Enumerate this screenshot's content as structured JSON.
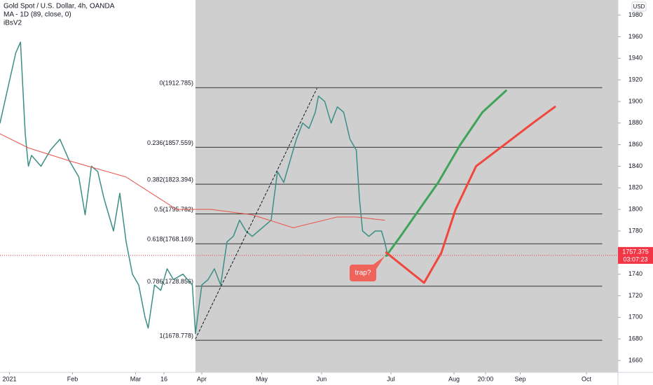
{
  "chart_data": {
    "type": "line",
    "title": "Gold Spot / U.S. Dollar, 4h, OANDA",
    "annotations": [
      "iBsV2",
      "trap?"
    ],
    "currency": "USD",
    "last_price": 1757.375,
    "countdown": "03:07:23",
    "xlim": [
      0,
      196
    ],
    "ylim": [
      1649,
      1994
    ],
    "yticks": [
      1660,
      1680,
      1700,
      1720,
      1740,
      1760,
      1780,
      1800,
      1820,
      1840,
      1860,
      1880,
      1900,
      1920,
      1940,
      1960,
      1980
    ],
    "xticks": [
      {
        "value": 3,
        "label": "2021"
      },
      {
        "value": 23,
        "label": "Feb"
      },
      {
        "value": 43,
        "label": "Mar"
      },
      {
        "value": 52,
        "label": "16"
      },
      {
        "value": 64,
        "label": "Apr"
      },
      {
        "value": 83,
        "label": "May"
      },
      {
        "value": 102,
        "label": "Jun"
      },
      {
        "value": 124,
        "label": "Jul"
      },
      {
        "value": 144,
        "label": "Aug"
      },
      {
        "value": 154,
        "label": "20:00"
      },
      {
        "value": 165,
        "label": "Sep"
      },
      {
        "value": 186,
        "label": "Oct"
      }
    ],
    "fib_range": [
      62,
      191
    ],
    "fib_levels": [
      {
        "value": 1912.785,
        "label": "0(1912.785)"
      },
      {
        "value": 1857.559,
        "label": "0.236(1857.559)"
      },
      {
        "value": 1823.394,
        "label": "0.382(1823.394)"
      },
      {
        "value": 1795.782,
        "label": "0.5(1795.782)"
      },
      {
        "value": 1768.169,
        "label": "0.618(1768.169)"
      },
      {
        "value": 1728.856,
        "label": "0.786(1728.856)"
      },
      {
        "value": 1678.778,
        "label": "1(1678.778)"
      }
    ],
    "series": [
      {
        "color": "#3b8f86",
        "x": [
          0,
          5,
          6.5,
          8,
          9,
          10,
          13,
          16,
          19,
          22,
          25,
          27,
          29,
          31,
          33,
          36,
          38,
          40,
          42,
          44,
          46,
          47,
          49,
          51,
          53,
          55,
          58,
          61,
          62,
          64,
          66,
          68,
          70,
          72,
          74,
          76,
          78,
          80,
          82,
          84,
          86,
          88,
          90,
          92,
          94,
          96,
          98,
          100,
          101,
          103,
          105,
          107,
          109,
          111,
          112,
          113,
          114,
          115,
          117,
          119,
          121,
          122,
          123
        ],
        "values": [
          1880,
          1945,
          1955,
          1870,
          1840,
          1850,
          1840,
          1855,
          1865,
          1845,
          1830,
          1795,
          1840,
          1835,
          1810,
          1780,
          1815,
          1770,
          1740,
          1730,
          1700,
          1690,
          1730,
          1725,
          1745,
          1735,
          1740,
          1730,
          1685,
          1730,
          1735,
          1745,
          1730,
          1770,
          1775,
          1790,
          1780,
          1775,
          1780,
          1785,
          1790,
          1835,
          1825,
          1845,
          1865,
          1880,
          1875,
          1890,
          1905,
          1900,
          1880,
          1895,
          1890,
          1865,
          1860,
          1855,
          1810,
          1780,
          1775,
          1780,
          1780,
          1770,
          1757
        ]
      },
      {
        "name": "MA - 1D (89, close, 0)",
        "color": "#e8544a",
        "x": [
          0,
          9,
          22,
          40,
          56,
          67,
          80,
          93,
          107,
          113,
          122
        ],
        "values": [
          1870,
          1857,
          1845,
          1830,
          1800,
          1800,
          1795,
          1783,
          1793,
          1793,
          1790
        ]
      },
      {
        "color": "#131722",
        "dashed": true,
        "x": [
          62,
          100.5
        ],
        "values": [
          1680,
          1912
        ]
      },
      {
        "color": "#3fa35a",
        "x": [
          122.5,
          127,
          133,
          139,
          146,
          153,
          160.5
        ],
        "values": [
          1757,
          1775,
          1800,
          1825,
          1860,
          1890,
          1910
        ]
      },
      {
        "color": "#f0463c",
        "x": [
          122.5,
          134.5,
          140,
          144.5,
          151,
          160,
          169,
          176
        ],
        "values": [
          1760,
          1732,
          1760,
          1800,
          1840,
          1860,
          1880,
          1895
        ]
      }
    ]
  }
}
